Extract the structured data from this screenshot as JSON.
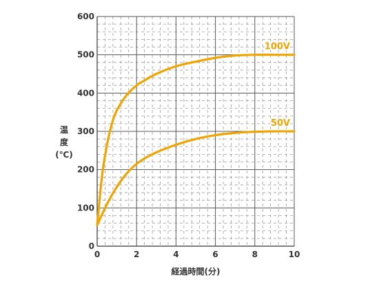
{
  "chart_data": {
    "type": "line",
    "title": "",
    "xlabel": "経過時間(分)",
    "ylabel_lines": [
      "温",
      "度",
      "(℃)"
    ],
    "xlim": [
      0,
      10
    ],
    "ylim": [
      0,
      600
    ],
    "x_ticks": [
      "0",
      "2",
      "4",
      "6",
      "8",
      "10"
    ],
    "y_ticks": [
      "0",
      "100",
      "200",
      "300",
      "400",
      "500",
      "600"
    ],
    "grid": true,
    "series": [
      {
        "name": "100V",
        "color": "#f0a400",
        "x": [
          0,
          0.25,
          0.5,
          0.75,
          1.0,
          1.5,
          2.0,
          2.3,
          3.0,
          4.0,
          5.0,
          6.0,
          7.0,
          8.0,
          9.0,
          10.0
        ],
        "y": [
          55,
          185,
          265,
          320,
          355,
          395,
          420,
          430,
          450,
          470,
          482,
          492,
          498,
          500,
          500,
          500
        ]
      },
      {
        "name": "50V",
        "color": "#f0a400",
        "x": [
          0,
          0.5,
          1.0,
          1.5,
          2.0,
          2.5,
          3.0,
          4.0,
          5.0,
          6.0,
          7.0,
          8.0,
          9.0,
          10.0
        ],
        "y": [
          55,
          110,
          155,
          190,
          215,
          232,
          245,
          265,
          280,
          290,
          296,
          299,
          300,
          300
        ]
      }
    ]
  }
}
